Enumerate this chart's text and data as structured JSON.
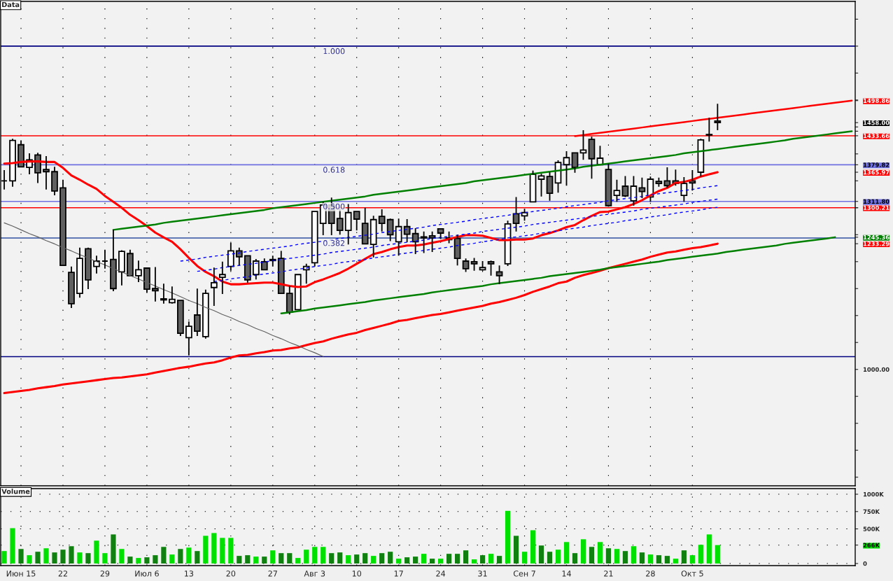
{
  "chart_data": [
    {
      "type": "candlestick",
      "title": "Data",
      "categories": [
        null,
        null,
        null,
        null,
        null,
        null,
        null,
        null,
        null,
        null,
        null,
        null,
        null,
        null,
        null,
        null,
        null,
        null,
        null,
        null,
        null,
        null,
        null,
        null,
        null,
        null,
        null,
        null,
        null,
        null,
        null,
        null,
        null,
        null,
        null,
        null,
        null,
        null,
        null,
        null,
        null,
        null,
        null,
        null,
        null,
        null,
        null,
        null,
        null,
        null,
        null,
        null,
        null,
        null,
        null,
        null,
        null,
        null,
        null,
        null,
        null,
        null,
        null,
        null,
        null,
        null,
        null,
        null,
        null,
        null,
        null,
        null,
        null,
        null,
        null,
        null,
        null,
        null,
        null,
        null,
        null,
        null,
        null,
        null,
        null,
        null,
        null,
        null,
        null,
        null,
        null,
        null,
        null,
        null,
        null,
        null,
        null,
        null,
        null,
        null,
        null,
        null
      ],
      "ohlc": [
        [
          1350,
          1370,
          1334,
          1350
        ],
        [
          1350,
          1428,
          1339,
          1425
        ],
        [
          1417,
          1425,
          1376,
          1376
        ],
        [
          1375,
          1401,
          1362,
          1389
        ],
        [
          1398,
          1402,
          1346,
          1365
        ],
        [
          1371,
          1396,
          1334,
          1367
        ],
        [
          1367,
          1376,
          1323,
          1331
        ],
        [
          1337,
          1352,
          1193,
          1193
        ],
        [
          1180,
          1191,
          1114,
          1122
        ],
        [
          1141,
          1226,
          1133,
          1206
        ],
        [
          1224,
          1226,
          1149,
          1166
        ],
        [
          1191,
          1211,
          1178,
          1201
        ],
        [
          1201,
          1222,
          1187,
          1201
        ],
        [
          1204,
          1259,
          1145,
          1150
        ],
        [
          1181,
          1221,
          1156,
          1219
        ],
        [
          1215,
          1222,
          1174,
          1174
        ],
        [
          1174,
          1202,
          1162,
          1185
        ],
        [
          1188,
          1189,
          1142,
          1149
        ],
        [
          1150,
          1190,
          1126,
          1146
        ],
        [
          1131,
          1159,
          1122,
          1129
        ],
        [
          1124,
          1154,
          1122,
          1130
        ],
        [
          1128,
          1128,
          1062,
          1067
        ],
        [
          1059,
          1089,
          1026,
          1080
        ],
        [
          1101,
          1150,
          1062,
          1071
        ],
        [
          1061,
          1148,
          1057,
          1141
        ],
        [
          1152,
          1189,
          1118,
          1161
        ],
        [
          1171,
          1200,
          1140,
          1176
        ],
        [
          1191,
          1235,
          1183,
          1220
        ],
        [
          1220,
          1226,
          1193,
          1209
        ],
        [
          1211,
          1211,
          1161,
          1166
        ],
        [
          1176,
          1205,
          1167,
          1201
        ],
        [
          1200,
          1206,
          1185,
          1185
        ],
        [
          1204,
          1211,
          1191,
          1202
        ],
        [
          1206,
          1220,
          1141,
          1141
        ],
        [
          1141,
          1155,
          1102,
          1106
        ],
        [
          1111,
          1176,
          1110,
          1176
        ],
        [
          1185,
          1196,
          1159,
          1191
        ],
        [
          1198,
          1294,
          1191,
          1293
        ],
        [
          1271,
          1311,
          1249,
          1305
        ],
        [
          1305,
          1319,
          1249,
          1271
        ],
        [
          1280,
          1297,
          1250,
          1258
        ],
        [
          1258,
          1307,
          1232,
          1291
        ],
        [
          1293,
          1294,
          1258,
          1279
        ],
        [
          1271,
          1300,
          1233,
          1233
        ],
        [
          1232,
          1285,
          1208,
          1278
        ],
        [
          1284,
          1297,
          1256,
          1271
        ],
        [
          1278,
          1280,
          1238,
          1250
        ],
        [
          1237,
          1280,
          1211,
          1265
        ],
        [
          1265,
          1279,
          1236,
          1251
        ],
        [
          1252,
          1262,
          1214,
          1237
        ],
        [
          1246,
          1256,
          1216,
          1244
        ],
        [
          1248,
          1256,
          1218,
          1244
        ],
        [
          1261,
          1261,
          1242,
          1253
        ],
        [
          1244,
          1256,
          1234,
          1241
        ],
        [
          1243,
          1250,
          1193,
          1206
        ],
        [
          1201,
          1206,
          1181,
          1187
        ],
        [
          1200,
          1207,
          1183,
          1196
        ],
        [
          1185,
          1201,
          1183,
          1189
        ],
        [
          1200,
          1202,
          1174,
          1196
        ],
        [
          1181,
          1193,
          1158,
          1174
        ],
        [
          1196,
          1276,
          1192,
          1270
        ],
        [
          1289,
          1320,
          1256,
          1271
        ],
        [
          1285,
          1298,
          1276,
          1291
        ],
        [
          1311,
          1369,
          1311,
          1362
        ],
        [
          1353,
          1363,
          1321,
          1359
        ],
        [
          1358,
          1366,
          1313,
          1327
        ],
        [
          1346,
          1388,
          1328,
          1384
        ],
        [
          1380,
          1405,
          1341,
          1393
        ],
        [
          1402,
          1402,
          1365,
          1375
        ],
        [
          1402,
          1444,
          1389,
          1407
        ],
        [
          1427,
          1432,
          1354,
          1391
        ],
        [
          1380,
          1415,
          1380,
          1392
        ],
        [
          1371,
          1382,
          1302,
          1304
        ],
        [
          1323,
          1352,
          1311,
          1332
        ],
        [
          1340,
          1359,
          1320,
          1322
        ],
        [
          1313,
          1359,
          1304,
          1340
        ],
        [
          1337,
          1356,
          1318,
          1330
        ],
        [
          1320,
          1358,
          1311,
          1353
        ],
        [
          1349,
          1356,
          1339,
          1345
        ],
        [
          1350,
          1375,
          1337,
          1341
        ],
        [
          1350,
          1371,
          1341,
          1345
        ],
        [
          1323,
          1357,
          1311,
          1345
        ],
        [
          1350,
          1370,
          1332,
          1346
        ],
        [
          1366,
          1428,
          1358,
          1426
        ],
        [
          1436,
          1467,
          1423,
          1435
        ],
        [
          1461,
          1493,
          1444,
          1458
        ],
        null,
        null,
        null,
        null,
        null,
        null,
        null,
        null,
        null,
        null,
        null,
        null,
        null,
        null,
        null,
        null
      ],
      "series": [
        {
          "type": "line",
          "color": "#ff0000",
          "values": [
            1382,
            1383,
            1385,
            1386,
            1386,
            1385,
            1385,
            1374,
            1360,
            1352,
            1343,
            1335,
            1322,
            1311,
            1300,
            1287,
            1277,
            1266,
            1254,
            1245,
            1237,
            1223,
            1207,
            1192,
            1181,
            1173,
            1163,
            1158,
            1158,
            1159,
            1160,
            1161,
            1161,
            1158,
            1155,
            1153,
            1154,
            1162,
            1167,
            1173,
            1179,
            1187,
            1196,
            1205,
            1214,
            1218,
            1223,
            1227,
            1230,
            1230,
            1232,
            1235,
            1238,
            1242,
            1246,
            1249,
            1249,
            1248,
            1244,
            1240,
            1240,
            1241,
            1241,
            1243,
            1249,
            1253,
            1258,
            1264,
            1268,
            1277,
            1285,
            1292,
            1293,
            1297,
            1301,
            1307,
            1314,
            1323,
            1331,
            1337,
            1346,
            1348,
            1352,
            1358,
            1362,
            1365.97,
            null,
            null,
            null,
            null,
            null,
            null,
            null,
            null,
            null,
            null,
            null,
            null,
            null,
            null,
            null,
            null
          ]
        },
        {
          "type": "line",
          "color": "#ff0000",
          "values": [
            956,
            958,
            960,
            962,
            965,
            967,
            969,
            972,
            974,
            976,
            978,
            980,
            982,
            984,
            985,
            987,
            989,
            991,
            994,
            997,
            1000,
            1003,
            1005,
            1008,
            1011,
            1013,
            1017,
            1022,
            1026,
            1027,
            1030,
            1032,
            1035,
            1036,
            1039,
            1041,
            1045,
            1049,
            1052,
            1057,
            1061,
            1065,
            1068,
            1073,
            1077,
            1081,
            1085,
            1090,
            1092,
            1095,
            1098,
            1101,
            1103,
            1106,
            1109,
            1112,
            1115,
            1118,
            1122,
            1125,
            1129,
            1133,
            1138,
            1144,
            1149,
            1154,
            1160,
            1163,
            1170,
            1175,
            1179,
            1183,
            1188,
            1192,
            1196,
            1200,
            1204,
            1209,
            1213,
            1217,
            1219,
            1222,
            1225,
            1227,
            1230,
            1233.29,
            null,
            null,
            null,
            null,
            null,
            null,
            null,
            null,
            null,
            null,
            null,
            null,
            null,
            null,
            null,
            null
          ]
        },
        {
          "type": "line",
          "color": "#008000",
          "values": [
            null,
            null,
            null,
            null,
            null,
            null,
            null,
            null,
            null,
            null,
            null,
            null,
            null,
            1259,
            1261,
            1263,
            1265,
            1267,
            1269,
            1272,
            1274,
            1276,
            1278,
            1280,
            1282,
            1284,
            1286,
            1288,
            1290,
            1292,
            1294,
            1296,
            1299,
            1301,
            1303,
            1305,
            1307,
            1309,
            1311,
            1313,
            1315,
            1317,
            1319,
            1321,
            1324,
            1326,
            1328,
            1330,
            1332,
            1334,
            1336,
            1338,
            1340,
            1342,
            1344,
            1346,
            1349,
            1351,
            1353,
            1355,
            1357,
            1359,
            1361,
            1363,
            1365,
            1367,
            1369,
            1371,
            1373,
            1376,
            1378,
            1380,
            1382,
            1384,
            1386,
            1388,
            1390,
            1392,
            1394,
            1396,
            1398,
            1401,
            1403,
            1405,
            1407,
            1409,
            1411,
            1413,
            1415,
            1417,
            1419,
            1421,
            1423,
            1425,
            1428,
            1430,
            1432,
            1434,
            1436,
            1438,
            1440,
            1442.1
          ]
        },
        {
          "type": "line",
          "color": "#008000",
          "values": [
            null,
            null,
            null,
            null,
            null,
            null,
            null,
            null,
            null,
            null,
            null,
            null,
            null,
            null,
            null,
            null,
            null,
            null,
            null,
            null,
            null,
            null,
            null,
            null,
            null,
            null,
            null,
            null,
            null,
            null,
            null,
            null,
            null,
            1104,
            1106,
            1108,
            1110,
            1113,
            1115,
            1117,
            1119,
            1121,
            1123,
            1125,
            1128,
            1130,
            1132,
            1134,
            1136,
            1138,
            1140,
            1143,
            1145,
            1147,
            1149,
            1151,
            1153,
            1155,
            1158,
            1160,
            1162,
            1164,
            1166,
            1168,
            1170,
            1173,
            1175,
            1177,
            1179,
            1181,
            1183,
            1185,
            1188,
            1190,
            1192,
            1194,
            1196,
            1198,
            1200,
            1203,
            1205,
            1207,
            1209,
            1211,
            1213,
            1215,
            1218,
            1220,
            1222,
            1224,
            1226,
            1228,
            1230,
            1233,
            1235,
            1237,
            1239,
            1241,
            1243,
            1245.36,
            null,
            null
          ]
        },
        {
          "type": "line",
          "color": "#ff0000",
          "values": [
            null,
            null,
            null,
            null,
            null,
            null,
            null,
            null,
            null,
            null,
            null,
            null,
            null,
            null,
            null,
            null,
            null,
            null,
            null,
            null,
            null,
            null,
            null,
            null,
            null,
            null,
            null,
            null,
            null,
            null,
            null,
            null,
            null,
            null,
            null,
            null,
            null,
            null,
            null,
            null,
            null,
            null,
            null,
            null,
            null,
            null,
            null,
            null,
            null,
            null,
            null,
            null,
            null,
            null,
            null,
            null,
            null,
            null,
            null,
            null,
            null,
            null,
            null,
            null,
            null,
            null,
            null,
            null,
            1433,
            1435,
            1437,
            1439,
            1441,
            1443,
            1445,
            1447,
            1449,
            1451,
            1453,
            1455,
            1457,
            1459,
            1461,
            1463,
            1465,
            1467,
            1469,
            1471,
            1473,
            1475,
            1477,
            1479,
            1481,
            1483,
            1485,
            1487,
            1489,
            1491,
            1493,
            1495,
            1497,
            1498.86
          ]
        },
        {
          "type": "line",
          "color": "#606060",
          "values": [
            1272,
            1266,
            1259,
            1252,
            1246,
            1239,
            1233,
            1226,
            1220,
            1213,
            1207,
            1200,
            1194,
            1187,
            1181,
            1174,
            1168,
            1161,
            1155,
            1148,
            1142,
            1135,
            1128,
            1122,
            1115,
            1109,
            1102,
            1096,
            1089,
            1083,
            1076,
            1070,
            1063,
            1057,
            1050,
            1044,
            1037,
            1031,
            1024,
            null,
            null,
            null,
            null,
            null,
            null,
            null,
            null,
            null,
            null,
            null,
            null,
            null,
            null,
            null,
            null,
            null,
            null,
            null,
            null,
            null,
            null,
            null,
            null,
            null,
            null,
            null,
            null,
            null,
            null,
            null,
            null,
            null,
            null,
            null,
            null,
            null,
            null,
            null,
            null,
            null,
            null,
            null,
            null,
            null,
            null,
            null,
            null,
            null,
            null,
            null,
            null,
            null,
            null,
            null,
            null,
            null,
            null,
            null,
            null,
            null,
            null,
            null
          ]
        },
        {
          "type": "line",
          "color": "#0000ff",
          "line_style": "dashed",
          "values": [
            null,
            null,
            null,
            null,
            null,
            null,
            null,
            null,
            null,
            null,
            null,
            null,
            null,
            null,
            null,
            null,
            null,
            null,
            null,
            null,
            null,
            1201,
            1203,
            1205,
            1208,
            1210,
            1212,
            1214,
            1216,
            1219,
            1221,
            1223,
            1225,
            1227,
            1229,
            1232,
            1234,
            1236,
            1238,
            1240,
            1243,
            1245,
            1247,
            1249,
            1251,
            1254,
            1256,
            1258,
            1260,
            1262,
            1264,
            1267,
            1269,
            1271,
            1273,
            1275,
            1278,
            1280,
            1282,
            1284,
            1286,
            1289,
            1291,
            1293,
            1295,
            1297,
            1299,
            1302,
            1304,
            1306,
            1308,
            1310,
            1313,
            1315,
            1317,
            1319,
            1321,
            1324,
            1326,
            1328,
            1330,
            1332,
            1334,
            1337,
            1339,
            1341,
            null,
            null,
            null,
            null,
            null,
            null,
            null,
            null,
            null,
            null,
            null,
            null,
            null,
            null,
            null,
            null
          ]
        },
        {
          "type": "line",
          "color": "#0000ff",
          "line_style": "dashed",
          "values": [
            null,
            null,
            null,
            null,
            null,
            null,
            null,
            null,
            null,
            null,
            null,
            null,
            null,
            null,
            null,
            null,
            null,
            null,
            null,
            null,
            null,
            null,
            null,
            1182,
            1184,
            1186,
            1189,
            1191,
            1193,
            1195,
            1197,
            1199,
            1202,
            1204,
            1206,
            1208,
            1210,
            1212,
            1214,
            1217,
            1219,
            1221,
            1223,
            1225,
            1227,
            1230,
            1232,
            1234,
            1236,
            1238,
            1240,
            1243,
            1245,
            1247,
            1249,
            1251,
            1253,
            1256,
            1258,
            1260,
            1262,
            1264,
            1266,
            1269,
            1271,
            1273,
            1275,
            1277,
            1279,
            1281,
            1284,
            1286,
            1288,
            1290,
            1292,
            1294,
            1297,
            1299,
            1301,
            1303,
            1305,
            1307,
            1310,
            1312,
            1314,
            1316,
            null,
            null,
            null,
            null,
            null,
            null,
            null,
            null,
            null,
            null,
            null,
            null,
            null,
            null,
            null,
            null
          ]
        },
        {
          "type": "line",
          "color": "#0000ff",
          "line_style": "dashed",
          "values": [
            null,
            null,
            null,
            null,
            null,
            null,
            null,
            null,
            null,
            null,
            null,
            null,
            null,
            null,
            null,
            null,
            null,
            null,
            null,
            null,
            null,
            null,
            null,
            null,
            null,
            1163,
            1165,
            1168,
            1170,
            1172,
            1175,
            1177,
            1179,
            1181,
            1184,
            1186,
            1188,
            1191,
            1193,
            1195,
            1198,
            1200,
            1202,
            1204,
            1207,
            1209,
            1211,
            1214,
            1216,
            1218,
            1221,
            1223,
            1225,
            1227,
            1230,
            1232,
            1234,
            1237,
            1239,
            1241,
            1244,
            1246,
            1248,
            1250,
            1253,
            1255,
            1257,
            1260,
            1262,
            1264,
            1267,
            1269,
            1271,
            1273,
            1276,
            1278,
            1280,
            1283,
            1285,
            1287,
            1290,
            1292,
            1294,
            1296,
            1299,
            1301,
            null,
            null,
            null,
            null,
            null,
            null,
            null,
            null,
            null,
            null,
            null,
            null,
            null,
            null,
            null,
            null
          ]
        }
      ],
      "ref_lines": [
        {
          "axis": "y",
          "value": 1600,
          "color": "#000080"
        },
        {
          "axis": "y",
          "value": 1379.82,
          "color": "#7070e0"
        },
        {
          "axis": "y",
          "value": 1311.8,
          "color": "#7070e0"
        },
        {
          "axis": "y",
          "value": 1243.8,
          "color": "#3050a0"
        },
        {
          "axis": "y",
          "value": 1023.6,
          "color": "#000080"
        },
        {
          "axis": "y",
          "value": 1433.66,
          "color": "#ff0000"
        },
        {
          "axis": "y",
          "value": 1300.21,
          "color": "#ff0000"
        }
      ],
      "annotations": [
        {
          "text": "1.000",
          "y": 1600
        },
        {
          "text": "0.618",
          "y": 1379.82
        },
        {
          "text": "0.500",
          "y": 1311.8
        },
        {
          "text": "0.382",
          "y": 1243.8
        }
      ],
      "ylim": [
        784,
        1683
      ],
      "yticks": [
        {
          "value": 800,
          "label": null
        },
        {
          "value": 850,
          "label": null
        },
        {
          "value": 900,
          "label": null
        },
        {
          "value": 950,
          "label": null
        },
        {
          "value": 1000,
          "label": "1000.00"
        },
        {
          "value": 1050,
          "label": null
        },
        {
          "value": 1100,
          "label": null
        },
        {
          "value": 1150,
          "label": null
        },
        {
          "value": 1200,
          "label": null
        },
        {
          "value": 1233.29,
          "label": "1233.29"
        },
        {
          "value": 1245.36,
          "label": "1245.36"
        },
        {
          "value": 1250,
          "label": null
        },
        {
          "value": 1300,
          "label": null
        },
        {
          "value": 1300.21,
          "label": "1300.21"
        },
        {
          "value": 1311.8,
          "label": "1311.80"
        },
        {
          "value": 1350,
          "label": null
        },
        {
          "value": 1365.97,
          "label": "1365.97"
        },
        {
          "value": 1379.82,
          "label": "1379.82"
        },
        {
          "value": 1400,
          "label": null
        },
        {
          "value": 1433.66,
          "label": "1433.66"
        },
        {
          "value": 1442.1,
          "label": null
        },
        {
          "value": 1450,
          "label": null
        },
        {
          "value": 1458,
          "label": "1458.00"
        },
        {
          "value": 1498.86,
          "label": "1498.86"
        },
        {
          "value": 1500,
          "label": null
        },
        {
          "value": 1550,
          "label": null
        },
        {
          "value": 1600,
          "label": null
        },
        {
          "value": 1650,
          "label": null
        }
      ],
      "tick_labels": "y",
      "grid": true
    },
    {
      "type": "bar",
      "title": "Volume",
      "categories": [
        null,
        null,
        "Июн 15",
        null,
        null,
        null,
        null,
        "22",
        null,
        null,
        null,
        null,
        "29",
        null,
        null,
        null,
        null,
        "Июл 6",
        null,
        null,
        null,
        null,
        "13",
        null,
        null,
        null,
        null,
        "20",
        null,
        null,
        null,
        null,
        "27",
        null,
        null,
        null,
        null,
        "Авг 3",
        null,
        null,
        null,
        null,
        "10",
        null,
        null,
        null,
        null,
        "17",
        null,
        null,
        null,
        null,
        "24",
        null,
        null,
        null,
        null,
        "31",
        null,
        null,
        null,
        null,
        "Сен 7",
        null,
        null,
        null,
        null,
        "14",
        null,
        null,
        null,
        null,
        "21",
        null,
        null,
        null,
        null,
        "28",
        null,
        null,
        null,
        null,
        "Окт 5",
        null,
        null,
        null,
        null,
        null,
        null,
        null,
        null,
        null,
        null,
        null,
        null,
        null,
        null,
        null,
        null,
        null,
        null,
        null
      ],
      "values": [
        180,
        510,
        210,
        120,
        170,
        220,
        160,
        200,
        250,
        160,
        150,
        330,
        150,
        420,
        210,
        100,
        80,
        90,
        120,
        240,
        130,
        210,
        230,
        180,
        400,
        440,
        370,
        370,
        110,
        120,
        100,
        100,
        190,
        150,
        150,
        80,
        200,
        240,
        240,
        150,
        160,
        120,
        130,
        150,
        110,
        150,
        170,
        70,
        90,
        100,
        140,
        70,
        70,
        140,
        140,
        190,
        60,
        120,
        140,
        110,
        760,
        400,
        170,
        480,
        260,
        170,
        200,
        310,
        150,
        350,
        240,
        310,
        220,
        210,
        180,
        250,
        160,
        130,
        120,
        110,
        70,
        190,
        120,
        270,
        420,
        266,
        null,
        null,
        null,
        null,
        null,
        null,
        null,
        null,
        null,
        null,
        null,
        null,
        null,
        null,
        null,
        null
      ],
      "colors": [
        "#00e000",
        "#00e000",
        "#108010",
        "#00e000",
        "#108010",
        "#00e000",
        "#108010",
        "#108010",
        "#108010",
        "#00e000",
        "#108010",
        "#00e000",
        "#00e000",
        "#108010",
        "#00e000",
        "#108010",
        "#00e000",
        "#108010",
        "#108010",
        "#108010",
        "#00e000",
        "#108010",
        "#00e000",
        "#108010",
        "#00e000",
        "#00e000",
        "#00e000",
        "#00e000",
        "#108010",
        "#108010",
        "#00e000",
        "#108010",
        "#00e000",
        "#108010",
        "#108010",
        "#00e000",
        "#00e000",
        "#00e000",
        "#00e000",
        "#108010",
        "#108010",
        "#00e000",
        "#108010",
        "#108010",
        "#00e000",
        "#108010",
        "#108010",
        "#00e000",
        "#108010",
        "#108010",
        "#00e000",
        "#108010",
        "#00e000",
        "#108010",
        "#108010",
        "#108010",
        "#00e000",
        "#108010",
        "#00e000",
        "#108010",
        "#00e000",
        "#108010",
        "#00e000",
        "#00e000",
        "#108010",
        "#108010",
        "#00e000",
        "#00e000",
        "#108010",
        "#00e000",
        "#108010",
        "#00e000",
        "#108010",
        "#00e000",
        "#108010",
        "#00e000",
        "#108010",
        "#00e000",
        "#108010",
        "#108010",
        "#00e000",
        "#108010",
        "#00e000",
        "#00e000",
        "#00e000",
        "#00e000",
        null,
        null,
        null,
        null,
        null,
        null,
        null,
        null,
        null,
        null,
        null,
        null,
        null,
        null,
        null,
        null
      ],
      "ylim": [
        -30,
        1081
      ],
      "yticks": [
        0,
        {
          "value": 266,
          "label": "266K"
        },
        {
          "value": 500,
          "label": "500K"
        },
        {
          "value": 750,
          "label": "750K"
        },
        {
          "value": 1000,
          "label": "1000K"
        }
      ],
      "grid": true
    }
  ]
}
